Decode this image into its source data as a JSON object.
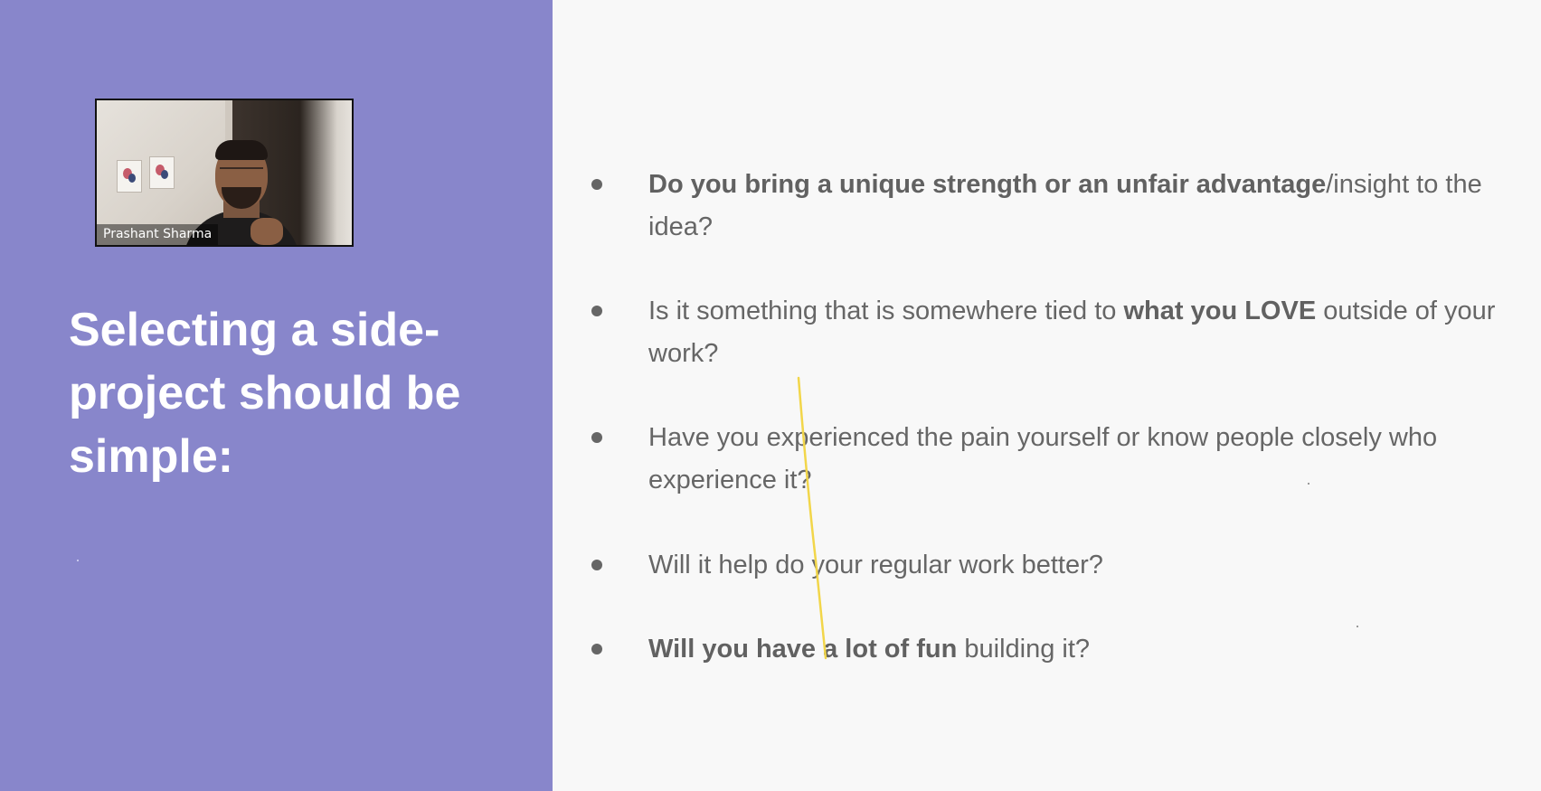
{
  "video": {
    "participant_name": "Prashant Sharma"
  },
  "slide": {
    "title": "Selecting a side-project should be simple:",
    "bullets": [
      {
        "segments": [
          {
            "text": "Do you bring a unique strength or an unfair advantage",
            "bold": true
          },
          {
            "text": "/insight to the idea?",
            "bold": false
          }
        ]
      },
      {
        "segments": [
          {
            "text": "Is it something that is somewhere tied to ",
            "bold": false
          },
          {
            "text": "what you LOVE",
            "bold": true
          },
          {
            "text": " outside of your work?",
            "bold": false
          }
        ]
      },
      {
        "segments": [
          {
            "text": "Have you experienced the pain yourself or know people closely who experience it?",
            "bold": false
          }
        ]
      },
      {
        "segments": [
          {
            "text": "Will it help do your regular work better?",
            "bold": false
          }
        ]
      },
      {
        "segments": [
          {
            "text": "Will you have a lot of fun",
            "bold": true
          },
          {
            "text": " building it?",
            "bold": false
          }
        ]
      }
    ]
  },
  "colors": {
    "left_panel": "#8886cb",
    "right_panel": "#f8f8f8",
    "bullet_text": "#666666",
    "annotation_stroke": "#f2d64a"
  }
}
